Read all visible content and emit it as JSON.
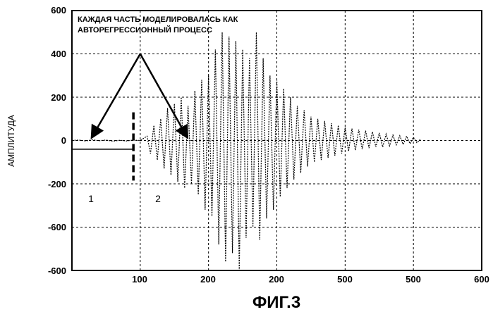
{
  "chart_data": {
    "type": "line",
    "title": "",
    "xlabel": "",
    "ylabel": "АМПЛИТУДА",
    "xlim": [
      0,
      600
    ],
    "ylim": [
      -600,
      600
    ],
    "grid": true,
    "x_tick_labels": [
      "100",
      "200",
      "200",
      "500",
      "500",
      "600"
    ],
    "y_tick_labels": [
      "600",
      "400",
      "200",
      "0",
      "-200",
      "-600",
      "-600"
    ],
    "annotation_lines": [
      "КАЖДАЯ ЧАСТЬ МОДЕЛИРОВАЛАСЬ КАК",
      "АВТОРЕГРЕССИОННЫЙ ПРОЦЕСС"
    ],
    "region_labels": [
      "1",
      "2"
    ],
    "boundary_x": 90,
    "annotation_apex": [
      100,
      400
    ],
    "annotation_targets": [
      [
        30,
        0
      ],
      [
        168,
        0
      ]
    ],
    "series": [
      {
        "x": [
          0,
          10,
          20,
          30,
          40,
          50,
          60,
          70,
          80,
          90,
          100,
          110,
          115,
          120,
          125,
          130,
          135,
          140,
          145,
          150,
          155,
          160,
          165,
          170,
          175,
          180,
          185,
          190,
          195,
          200,
          205,
          210,
          215,
          220,
          225,
          230,
          235,
          240,
          245,
          250,
          255,
          260,
          265,
          270,
          275,
          280,
          285,
          290,
          295,
          300,
          305,
          310,
          315,
          320,
          325,
          330,
          335,
          340,
          345,
          350,
          355,
          360,
          365,
          370,
          375,
          380,
          385,
          390,
          395,
          400,
          405,
          410,
          415,
          420,
          425,
          430,
          435,
          440,
          445,
          450,
          455,
          460,
          465,
          470,
          475,
          480,
          485,
          490,
          495,
          500,
          505,
          510
        ],
        "y": [
          0,
          2,
          -2,
          3,
          -1,
          2,
          -3,
          1,
          -2,
          2,
          0,
          20,
          -60,
          70,
          -90,
          100,
          -130,
          150,
          -160,
          170,
          -190,
          200,
          -220,
          160,
          -200,
          230,
          -250,
          280,
          -320,
          300,
          -350,
          420,
          -480,
          500,
          -560,
          480,
          -520,
          460,
          -600,
          420,
          -450,
          380,
          -400,
          500,
          -460,
          380,
          -360,
          300,
          -320,
          280,
          -260,
          240,
          -220,
          200,
          -180,
          160,
          -150,
          140,
          -120,
          110,
          -100,
          100,
          -90,
          90,
          -80,
          80,
          -70,
          70,
          -60,
          60,
          -50,
          55,
          -45,
          50,
          -40,
          45,
          -35,
          40,
          -30,
          35,
          -30,
          30,
          -25,
          25,
          -20,
          22,
          -18,
          20,
          -15,
          15,
          -10,
          5
        ]
      },
      {
        "x": [
          0,
          90
        ],
        "y": [
          -40,
          -40
        ]
      }
    ]
  },
  "figure_caption": "ФИГ.3",
  "colors": {
    "axis": "#000000",
    "grid": "#000000",
    "signal": "#000000",
    "background": "#ffffff"
  }
}
